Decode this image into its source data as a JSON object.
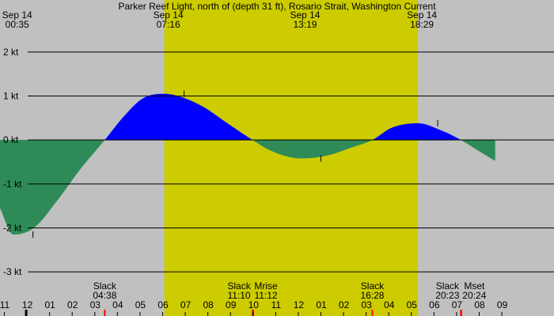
{
  "chart_data": {
    "type": "area",
    "title": "Parker Reef Light, north of (depth 31 ft), Rosario Strait, Washington Current",
    "unit": "kt",
    "xlim": [
      "00:00",
      "24:30"
    ],
    "ylim": [
      -3.5,
      2.5
    ],
    "colors": {
      "background": "#c0c0c0",
      "daylight": "#cccc00",
      "flood": "#0000ff",
      "ebb": "#2e8b57",
      "grid": "#000000",
      "hour_tick": "#000000",
      "event_tick": "#ff0000"
    },
    "daylight": {
      "start": "07:16",
      "end": "18:29"
    },
    "y_ticks": [
      {
        "value": 2,
        "label": "2 kt"
      },
      {
        "value": 1,
        "label": "1 kt"
      },
      {
        "value": 0,
        "label": "0 kt"
      },
      {
        "value": -1,
        "label": "-1 kt"
      },
      {
        "value": -2,
        "label": "-2 kt"
      },
      {
        "value": -3,
        "label": "-3 kt"
      }
    ],
    "x_ticks": [
      {
        "time": "00:00",
        "label": "11"
      },
      {
        "time": "01:00",
        "label": "12"
      },
      {
        "time": "02:00",
        "label": "01"
      },
      {
        "time": "03:00",
        "label": "02"
      },
      {
        "time": "04:00",
        "label": "03"
      },
      {
        "time": "05:00",
        "label": "04"
      },
      {
        "time": "06:00",
        "label": "05"
      },
      {
        "time": "07:00",
        "label": "06"
      },
      {
        "time": "08:00",
        "label": "07"
      },
      {
        "time": "09:00",
        "label": "08"
      },
      {
        "time": "10:00",
        "label": "09"
      },
      {
        "time": "11:00",
        "label": "10"
      },
      {
        "time": "12:00",
        "label": "11"
      },
      {
        "time": "13:00",
        "label": "12"
      },
      {
        "time": "14:00",
        "label": "01"
      },
      {
        "time": "15:00",
        "label": "02"
      },
      {
        "time": "16:00",
        "label": "03"
      },
      {
        "time": "17:00",
        "label": "04"
      },
      {
        "time": "18:00",
        "label": "05"
      },
      {
        "time": "19:00",
        "label": "06"
      },
      {
        "time": "20:00",
        "label": "07"
      },
      {
        "time": "21:00",
        "label": "08"
      },
      {
        "time": "22:00",
        "label": "09"
      }
    ],
    "peaks": [
      {
        "date": "Sep 14",
        "time": "00:35",
        "value": -2.15
      },
      {
        "date": "Sep 14",
        "time": "07:16",
        "value": 1.05
      },
      {
        "date": "Sep 14",
        "time": "13:19",
        "value": -0.42
      },
      {
        "date": "Sep 14",
        "time": "18:29",
        "value": 0.38
      }
    ],
    "events": [
      {
        "name": "Slack",
        "time_label": "04:38",
        "time": "04:38",
        "marker": "red"
      },
      {
        "name": "Slack",
        "time_label": "11:10",
        "time": "11:10",
        "marker": "red"
      },
      {
        "name": "Mrise",
        "time_label": "11:12",
        "time": "11:12",
        "marker": "red"
      },
      {
        "name": "Slack",
        "time_label": "16:28",
        "time": "16:28",
        "marker": "red"
      },
      {
        "name": "Slack",
        "time_label": "20:23",
        "time": "20:23",
        "marker": "red"
      },
      {
        "name": "Mset",
        "time_label": "20:24",
        "time": "20:24",
        "marker": "red"
      }
    ],
    "curve": [
      {
        "time": "00:00",
        "value": -1.55
      },
      {
        "time": "00:35",
        "value": -2.15
      },
      {
        "time": "01:30",
        "value": -2.0
      },
      {
        "time": "02:30",
        "value": -1.4
      },
      {
        "time": "03:30",
        "value": -0.7
      },
      {
        "time": "04:38",
        "value": 0
      },
      {
        "time": "05:30",
        "value": 0.55
      },
      {
        "time": "06:20",
        "value": 0.95
      },
      {
        "time": "07:16",
        "value": 1.05
      },
      {
        "time": "08:00",
        "value": 0.98
      },
      {
        "time": "09:00",
        "value": 0.75
      },
      {
        "time": "10:00",
        "value": 0.4
      },
      {
        "time": "11:10",
        "value": 0
      },
      {
        "time": "12:00",
        "value": -0.25
      },
      {
        "time": "13:19",
        "value": -0.42
      },
      {
        "time": "14:30",
        "value": -0.35
      },
      {
        "time": "15:30",
        "value": -0.18
      },
      {
        "time": "16:28",
        "value": 0
      },
      {
        "time": "17:20",
        "value": 0.28
      },
      {
        "time": "18:29",
        "value": 0.38
      },
      {
        "time": "19:30",
        "value": 0.22
      },
      {
        "time": "20:23",
        "value": 0
      },
      {
        "time": "21:10",
        "value": -0.25
      },
      {
        "time": "21:55",
        "value": -0.48
      }
    ]
  }
}
